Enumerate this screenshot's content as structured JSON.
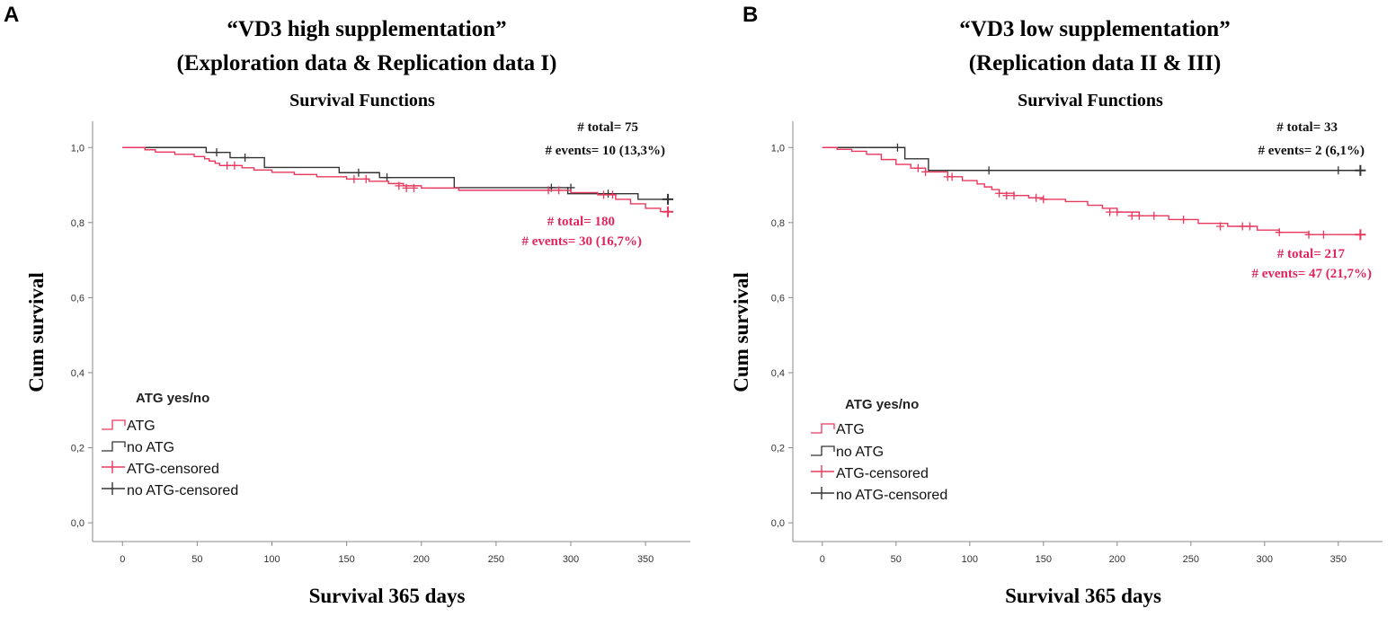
{
  "colors": {
    "atg": "#e8385e",
    "no_atg": "#333333",
    "axis": "#888888",
    "annotation_red": "#e0245e",
    "annotation_black": "#111111"
  },
  "chart_data": [
    {
      "panel": "A",
      "type": "line",
      "subtype": "kaplan-meier",
      "title_line1": "“VD3 high supplementation”",
      "title_line2": "(Exploration data & Replication data I)",
      "subtitle": "Survival Functions",
      "xlabel": "Survival 365 days",
      "ylabel": "Cum survival",
      "xlim": [
        -20,
        380
      ],
      "ylim": [
        -0.05,
        1.07
      ],
      "xticks": [
        0,
        50,
        100,
        150,
        200,
        250,
        300,
        350
      ],
      "yticks": [
        0.0,
        0.2,
        0.4,
        0.6,
        0.8,
        1.0
      ],
      "ytick_labels": [
        "0,0",
        "0,2",
        "0,4",
        "0,6",
        "0,8",
        "1,0"
      ],
      "legend": {
        "title": "ATG yes/no",
        "entries": [
          "ATG",
          "no ATG",
          "ATG-censored",
          "no ATG-censored"
        ]
      },
      "annotations": {
        "no_atg_total": "# total= 75",
        "no_atg_events": "# events= 10 (13,3%)",
        "atg_total": "# total= 180",
        "atg_events": "# events= 30 (16,7%)"
      },
      "series": [
        {
          "name": "ATG",
          "step_x": [
            0,
            15,
            22,
            35,
            48,
            55,
            58,
            62,
            65,
            80,
            88,
            100,
            115,
            130,
            150,
            165,
            178,
            188,
            200,
            225,
            280,
            300,
            318,
            330,
            340,
            350,
            360,
            365
          ],
          "step_y": [
            1.0,
            0.994,
            0.988,
            0.982,
            0.976,
            0.97,
            0.964,
            0.958,
            0.952,
            0.946,
            0.94,
            0.934,
            0.928,
            0.922,
            0.916,
            0.91,
            0.904,
            0.898,
            0.892,
            0.886,
            0.886,
            0.88,
            0.874,
            0.862,
            0.85,
            0.838,
            0.829,
            0.829
          ],
          "censored_x": [
            70,
            75,
            155,
            163,
            185,
            190,
            195,
            285,
            292,
            322,
            328,
            365
          ],
          "censored_y": [
            0.952,
            0.952,
            0.916,
            0.916,
            0.898,
            0.892,
            0.892,
            0.886,
            0.886,
            0.874,
            0.874,
            0.829
          ]
        },
        {
          "name": "no ATG",
          "step_x": [
            0,
            56,
            72,
            95,
            145,
            172,
            222,
            298,
            345,
            365
          ],
          "step_y": [
            1.0,
            0.987,
            0.973,
            0.947,
            0.933,
            0.92,
            0.893,
            0.877,
            0.862,
            0.862
          ],
          "censored_x": [
            63,
            82,
            158,
            177,
            287,
            300,
            325,
            365
          ],
          "censored_y": [
            0.987,
            0.973,
            0.933,
            0.92,
            0.893,
            0.893,
            0.877,
            0.862
          ]
        }
      ]
    },
    {
      "panel": "B",
      "type": "line",
      "subtype": "kaplan-meier",
      "title_line1": "“VD3 low supplementation”",
      "title_line2": "(Replication data II & III)",
      "subtitle": "Survival Functions",
      "xlabel": "Survival 365 days",
      "ylabel": "Cum survival",
      "xlim": [
        -20,
        380
      ],
      "ylim": [
        -0.05,
        1.07
      ],
      "xticks": [
        0,
        50,
        100,
        150,
        200,
        250,
        300,
        350
      ],
      "yticks": [
        0.0,
        0.2,
        0.4,
        0.6,
        0.8,
        1.0
      ],
      "ytick_labels": [
        "0,0",
        "0,2",
        "0,4",
        "0,6",
        "0,8",
        "1,0"
      ],
      "legend": {
        "title": "ATG yes/no",
        "entries": [
          "ATG",
          "no ATG",
          "ATG-censored",
          "no ATG-censored"
        ]
      },
      "annotations": {
        "no_atg_total": "# total= 33",
        "no_atg_events": "# events= 2 (6,1%)",
        "atg_total": "# total= 217",
        "atg_events": "# events= 47 (21,7%)"
      },
      "series": [
        {
          "name": "ATG",
          "step_x": [
            0,
            10,
            20,
            30,
            40,
            50,
            60,
            70,
            85,
            95,
            105,
            110,
            115,
            120,
            130,
            140,
            150,
            165,
            180,
            190,
            200,
            215,
            235,
            255,
            275,
            295,
            310,
            330,
            365
          ],
          "step_y": [
            1.0,
            0.995,
            0.99,
            0.982,
            0.968,
            0.955,
            0.945,
            0.935,
            0.922,
            0.912,
            0.903,
            0.895,
            0.888,
            0.878,
            0.872,
            0.866,
            0.862,
            0.856,
            0.846,
            0.838,
            0.828,
            0.818,
            0.808,
            0.798,
            0.79,
            0.78,
            0.774,
            0.768,
            0.768
          ],
          "censored_x": [
            65,
            70,
            85,
            88,
            120,
            125,
            130,
            145,
            150,
            195,
            200,
            210,
            215,
            225,
            245,
            270,
            285,
            290,
            310,
            330,
            340,
            365
          ],
          "censored_y": [
            0.945,
            0.935,
            0.922,
            0.922,
            0.878,
            0.872,
            0.872,
            0.866,
            0.862,
            0.828,
            0.828,
            0.818,
            0.818,
            0.818,
            0.808,
            0.79,
            0.79,
            0.79,
            0.774,
            0.768,
            0.768,
            0.768
          ]
        },
        {
          "name": "no ATG",
          "step_x": [
            0,
            56,
            72,
            365
          ],
          "step_y": [
            1.0,
            0.97,
            0.939,
            0.939
          ],
          "censored_x": [
            51,
            113,
            350,
            365
          ],
          "censored_y": [
            1.0,
            0.939,
            0.939,
            0.939
          ]
        }
      ]
    }
  ]
}
